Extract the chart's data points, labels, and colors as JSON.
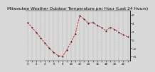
{
  "title": "Milwaukee Weather Outdoor Temperature per Hour (Last 24 Hours)",
  "hours": [
    0,
    1,
    2,
    3,
    4,
    5,
    6,
    7,
    8,
    9,
    10,
    11,
    12,
    13,
    14,
    15,
    16,
    17,
    18,
    19,
    20,
    21,
    22,
    23
  ],
  "temps": [
    4.2,
    3.0,
    1.8,
    0.5,
    -0.8,
    -2.0,
    -3.0,
    -3.8,
    -4.0,
    -2.5,
    -0.5,
    1.5,
    5.8,
    5.0,
    4.0,
    4.2,
    3.5,
    3.0,
    2.2,
    3.0,
    2.5,
    1.8,
    1.2,
    0.8
  ],
  "line_color": "#cc0000",
  "marker_color": "#111111",
  "bg_color": "#d8d8d8",
  "plot_bg_color": "#d8d8d8",
  "grid_color": "#888888",
  "ylim": [
    -5.0,
    7.0
  ],
  "yticks": [
    6,
    4,
    2,
    0,
    -2,
    -4
  ],
  "title_fontsize": 4.2,
  "tick_fontsize": 3.0
}
